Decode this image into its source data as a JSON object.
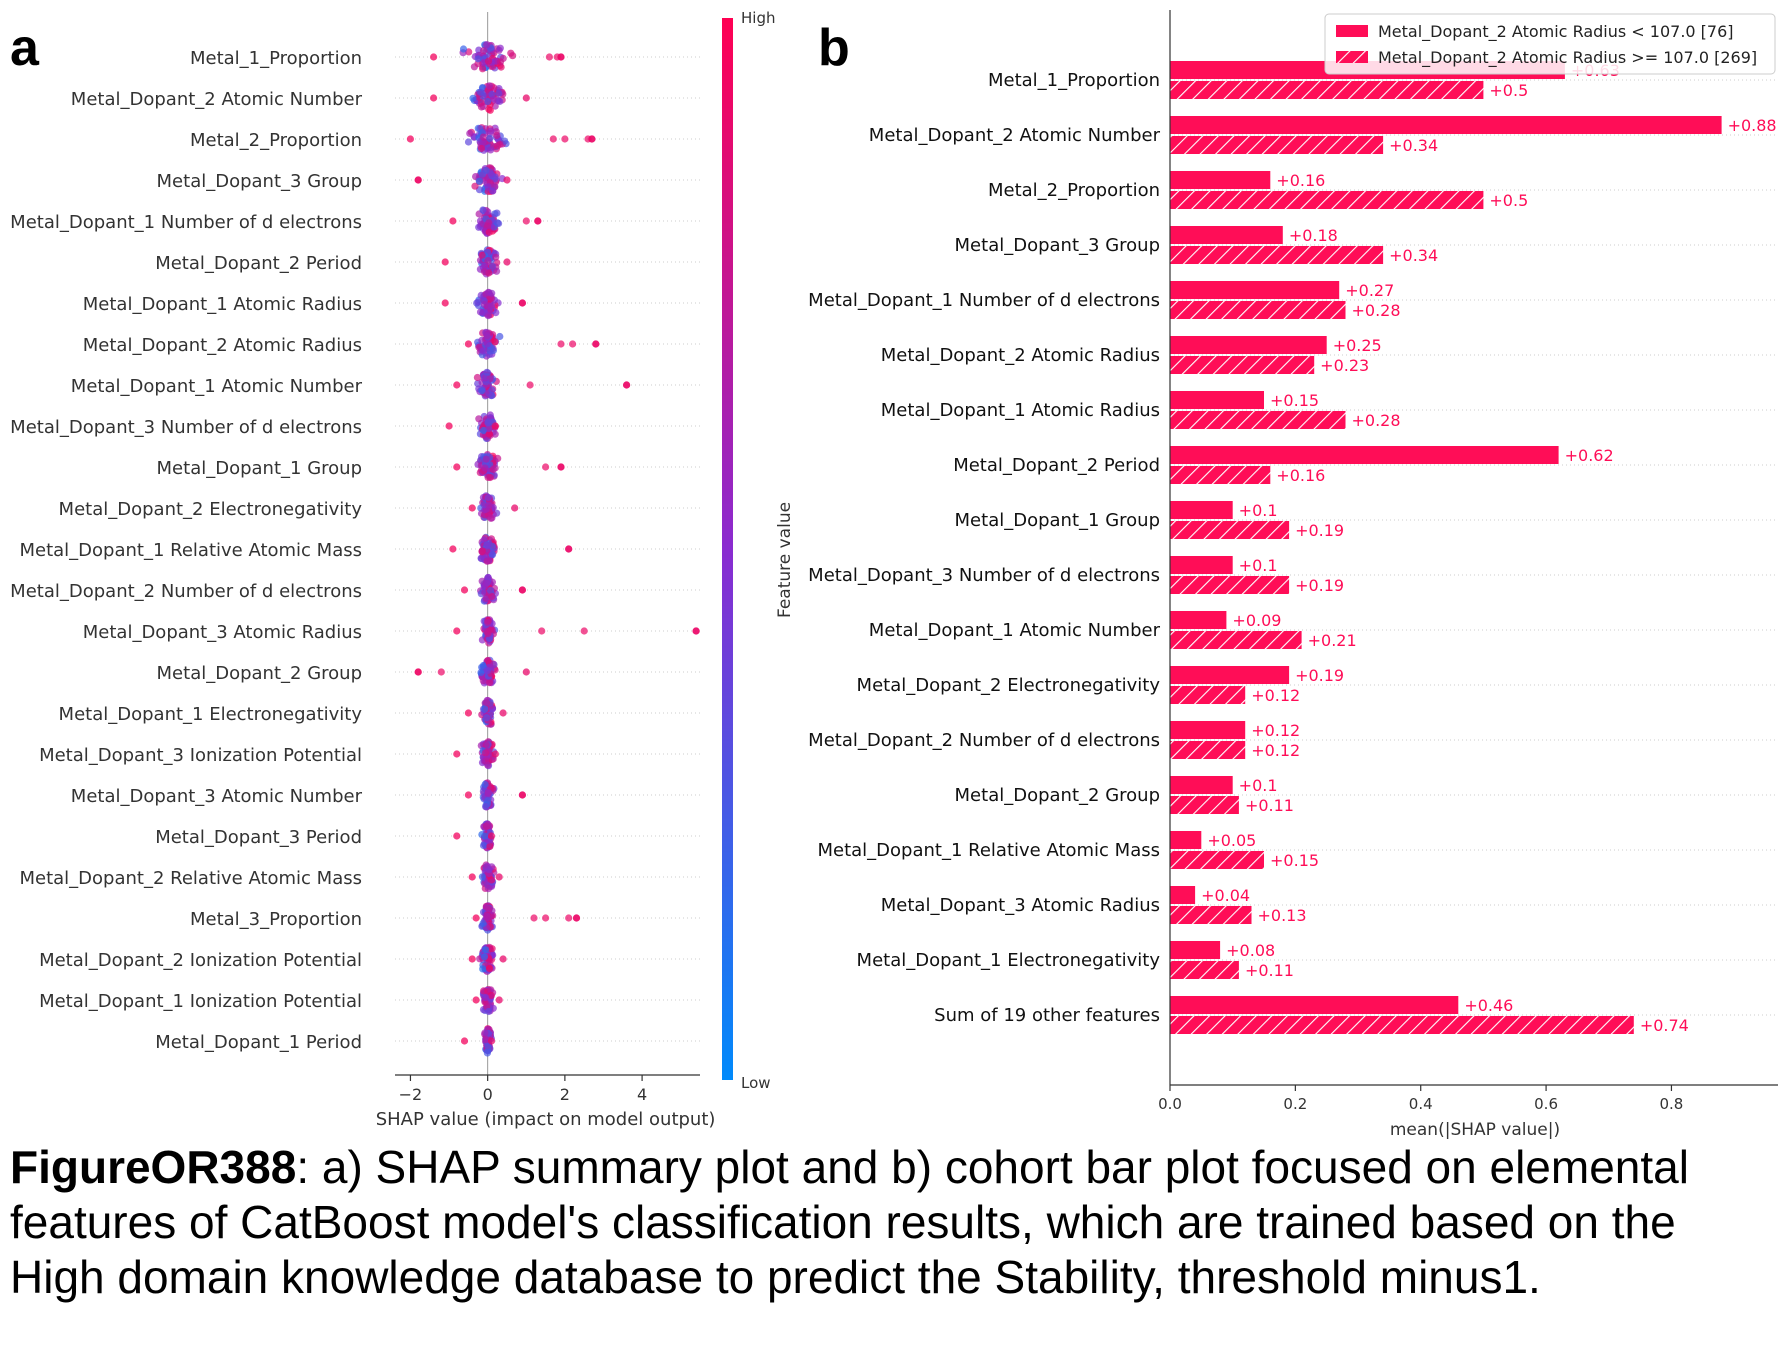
{
  "panels": {
    "a_label": "a",
    "b_label": "b"
  },
  "caption": {
    "figure_id": "FigureOR388",
    "text": ": a) SHAP summary plot and b) cohort bar plot focused on elemental features of CatBoost model's classification results, which are trained based on the High domain knowledge database to predict the Stability, threshold minus1."
  },
  "colors": {
    "high": "#ff0d57",
    "low": "#1e88e5",
    "mid": "#b70ba0"
  },
  "chart_data": [
    {
      "type": "scatter",
      "subtype": "shap-beeswarm",
      "xlabel": "SHAP value (impact on model output)",
      "xlim": [
        -2.4,
        5.5
      ],
      "xticks": [
        -2,
        0,
        2,
        4
      ],
      "colorbar": {
        "label": "Feature value",
        "high": "High",
        "low": "Low"
      },
      "features": [
        {
          "name": "Metal_1_Proportion",
          "min": -1.4,
          "max": 1.9,
          "spread": 0.8,
          "outliers": [
            1.6,
            1.8,
            1.9
          ]
        },
        {
          "name": "Metal_Dopant_2 Atomic Number",
          "min": -1.4,
          "max": 1.0,
          "spread": 0.6,
          "outliers": []
        },
        {
          "name": "Metal_2_Proportion",
          "min": -2.0,
          "max": 2.7,
          "spread": 0.8,
          "outliers": [
            1.7,
            2.0,
            2.6,
            2.7
          ]
        },
        {
          "name": "Metal_Dopant_3 Group",
          "min": -1.8,
          "max": 0.5,
          "spread": 0.5,
          "outliers": [
            -1.8
          ]
        },
        {
          "name": "Metal_Dopant_1 Number of d electrons",
          "min": -0.9,
          "max": 1.3,
          "spread": 0.4,
          "outliers": [
            1.0,
            1.3
          ]
        },
        {
          "name": "Metal_Dopant_2 Period",
          "min": -1.1,
          "max": 0.5,
          "spread": 0.4,
          "outliers": []
        },
        {
          "name": "Metal_Dopant_1 Atomic Radius",
          "min": -1.1,
          "max": 0.9,
          "spread": 0.4,
          "outliers": [
            0.9
          ]
        },
        {
          "name": "Metal_Dopant_2 Atomic Radius",
          "min": -0.5,
          "max": 2.8,
          "spread": 0.4,
          "outliers": [
            1.9,
            2.2,
            2.8
          ]
        },
        {
          "name": "Metal_Dopant_1 Atomic Number",
          "min": -0.8,
          "max": 3.6,
          "spread": 0.35,
          "outliers": [
            1.1,
            3.6
          ]
        },
        {
          "name": "Metal_Dopant_3 Number of d electrons",
          "min": -1.0,
          "max": 0.2,
          "spread": 0.35,
          "outliers": []
        },
        {
          "name": "Metal_Dopant_1 Group",
          "min": -0.8,
          "max": 1.9,
          "spread": 0.4,
          "outliers": [
            1.5,
            1.9
          ]
        },
        {
          "name": "Metal_Dopant_2 Electronegativity",
          "min": -0.4,
          "max": 0.7,
          "spread": 0.3,
          "outliers": []
        },
        {
          "name": "Metal_Dopant_1 Relative Atomic Mass",
          "min": -0.9,
          "max": 2.1,
          "spread": 0.3,
          "outliers": [
            2.1
          ]
        },
        {
          "name": "Metal_Dopant_2 Number of d electrons",
          "min": -0.6,
          "max": 0.9,
          "spread": 0.3,
          "outliers": [
            0.9
          ]
        },
        {
          "name": "Metal_Dopant_3 Atomic Radius",
          "min": -0.8,
          "max": 5.4,
          "spread": 0.25,
          "outliers": [
            1.4,
            2.5,
            5.4
          ]
        },
        {
          "name": "Metal_Dopant_2 Group",
          "min": -1.8,
          "max": 1.0,
          "spread": 0.3,
          "outliers": [
            -1.8,
            -1.2
          ]
        },
        {
          "name": "Metal_Dopant_1 Electronegativity",
          "min": -0.5,
          "max": 0.4,
          "spread": 0.3,
          "outliers": []
        },
        {
          "name": "Metal_Dopant_3 Ionization Potential",
          "min": -0.8,
          "max": 0.2,
          "spread": 0.25,
          "outliers": []
        },
        {
          "name": "Metal_Dopant_3 Atomic Number",
          "min": -0.5,
          "max": 0.9,
          "spread": 0.25,
          "outliers": [
            0.9
          ]
        },
        {
          "name": "Metal_Dopant_3 Period",
          "min": -0.8,
          "max": 0.1,
          "spread": 0.2,
          "outliers": []
        },
        {
          "name": "Metal_Dopant_2 Relative Atomic Mass",
          "min": -0.4,
          "max": 0.3,
          "spread": 0.25,
          "outliers": []
        },
        {
          "name": "Metal_3_Proportion",
          "min": -0.3,
          "max": 2.3,
          "spread": 0.2,
          "outliers": [
            1.2,
            1.5,
            2.1,
            2.3
          ]
        },
        {
          "name": "Metal_Dopant_2 Ionization Potential",
          "min": -0.4,
          "max": 0.4,
          "spread": 0.3,
          "outliers": []
        },
        {
          "name": "Metal_Dopant_1 Ionization Potential",
          "min": -0.3,
          "max": 0.3,
          "spread": 0.2,
          "outliers": []
        },
        {
          "name": "Metal_Dopant_1 Period",
          "min": -0.6,
          "max": 0.1,
          "spread": 0.15,
          "outliers": []
        }
      ]
    },
    {
      "type": "bar",
      "subtype": "horizontal-grouped",
      "xlabel": "mean(|SHAP value|)",
      "xlim": [
        0,
        0.97
      ],
      "xticks": [
        0.0,
        0.2,
        0.4,
        0.6,
        0.8
      ],
      "legend_position": "top-right",
      "categories": [
        "Metal_1_Proportion",
        "Metal_Dopant_2 Atomic Number",
        "Metal_2_Proportion",
        "Metal_Dopant_3 Group",
        "Metal_Dopant_1 Number of d electrons",
        "Metal_Dopant_2 Atomic Radius",
        "Metal_Dopant_1 Atomic Radius",
        "Metal_Dopant_2 Period",
        "Metal_Dopant_1 Group",
        "Metal_Dopant_3 Number of d electrons",
        "Metal_Dopant_1 Atomic Number",
        "Metal_Dopant_2 Electronegativity",
        "Metal_Dopant_2 Number of d electrons",
        "Metal_Dopant_2 Group",
        "Metal_Dopant_1 Relative Atomic Mass",
        "Metal_Dopant_3 Atomic Radius",
        "Metal_Dopant_1 Electronegativity",
        "Sum of 19 other features"
      ],
      "series": [
        {
          "name": "Metal_Dopant_2 Atomic Radius < 107.0 [76]",
          "values": [
            0.63,
            0.88,
            0.16,
            0.18,
            0.27,
            0.25,
            0.15,
            0.62,
            0.1,
            0.1,
            0.09,
            0.19,
            0.12,
            0.1,
            0.05,
            0.04,
            0.08,
            0.46
          ],
          "labels": [
            "+0.63",
            "+0.88",
            "+0.16",
            "+0.18",
            "+0.27",
            "+0.25",
            "+0.15",
            "+0.62",
            "+0.1",
            "+0.1",
            "+0.09",
            "+0.19",
            "+0.12",
            "+0.1",
            "+0.05",
            "+0.04",
            "+0.08",
            "+0.46"
          ]
        },
        {
          "name": "Metal_Dopant_2 Atomic Radius >= 107.0 [269]",
          "values": [
            0.5,
            0.34,
            0.5,
            0.34,
            0.28,
            0.23,
            0.28,
            0.16,
            0.19,
            0.19,
            0.21,
            0.12,
            0.12,
            0.11,
            0.15,
            0.13,
            0.11,
            0.74
          ],
          "labels": [
            "+0.5",
            "+0.34",
            "+0.5",
            "+0.34",
            "+0.28",
            "+0.23",
            "+0.28",
            "+0.16",
            "+0.19",
            "+0.19",
            "+0.21",
            "+0.12",
            "+0.12",
            "+0.11",
            "+0.15",
            "+0.13",
            "+0.11",
            "+0.74"
          ]
        }
      ]
    }
  ]
}
